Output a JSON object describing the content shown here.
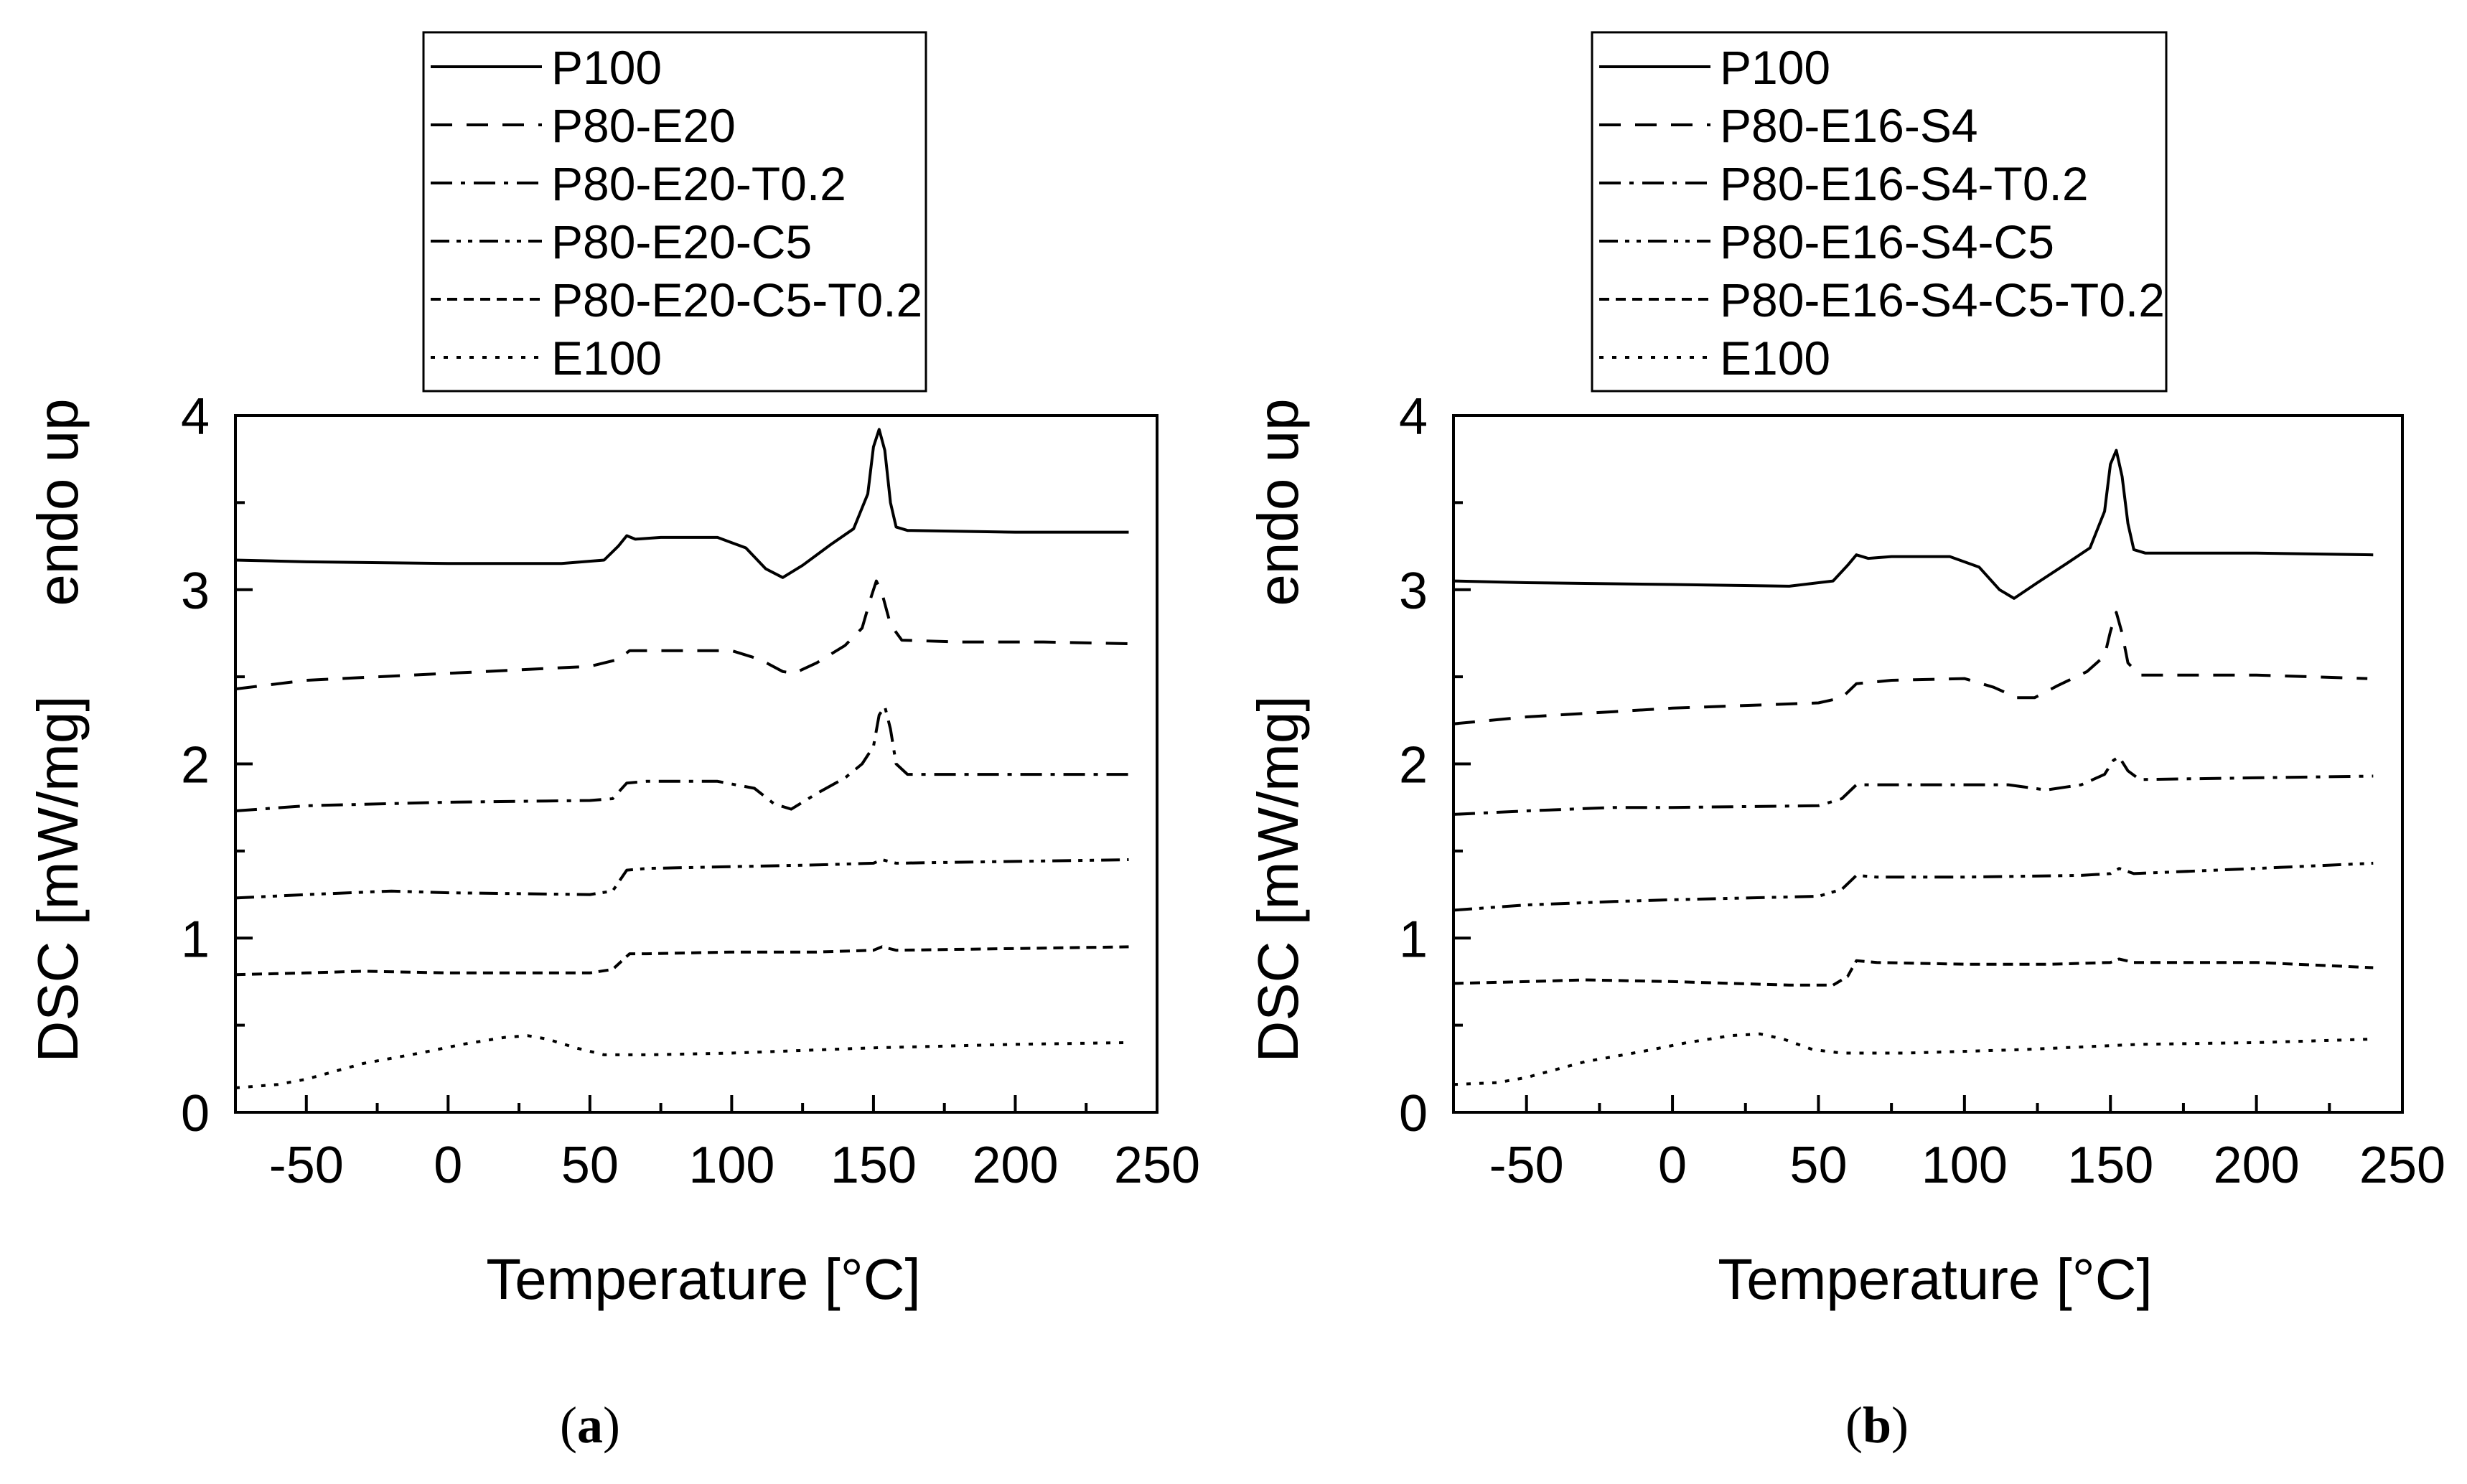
{
  "figure": {
    "panel_labels": [
      {
        "open": "(",
        "letter": "a",
        "close": ")"
      },
      {
        "open": "(",
        "letter": "b",
        "close": ")"
      }
    ]
  },
  "chart_data": [
    {
      "type": "line",
      "panel": "a",
      "xlabel": "Temperature [°C]",
      "ylabel": "DSC [mW/mg]",
      "ylabel_secondary": "endo up",
      "xlim": [
        -75,
        250
      ],
      "ylim": [
        0,
        4
      ],
      "xticks": [
        -50,
        0,
        50,
        100,
        150,
        200,
        250
      ],
      "yticks": [
        0,
        1,
        2,
        3,
        4
      ],
      "grid": false,
      "legend_position": "top",
      "series": [
        {
          "name": "P100",
          "dash": "solid",
          "points": [
            [
              -75,
              3.17
            ],
            [
              -50,
              3.16
            ],
            [
              0,
              3.15
            ],
            [
              40,
              3.15
            ],
            [
              55,
              3.17
            ],
            [
              60,
              3.25
            ],
            [
              63,
              3.31
            ],
            [
              66,
              3.29
            ],
            [
              75,
              3.3
            ],
            [
              95,
              3.3
            ],
            [
              105,
              3.24
            ],
            [
              112,
              3.12
            ],
            [
              118,
              3.07
            ],
            [
              125,
              3.14
            ],
            [
              135,
              3.26
            ],
            [
              143,
              3.35
            ],
            [
              148,
              3.55
            ],
            [
              150,
              3.82
            ],
            [
              152,
              3.92
            ],
            [
              154,
              3.8
            ],
            [
              156,
              3.5
            ],
            [
              158,
              3.36
            ],
            [
              162,
              3.34
            ],
            [
              200,
              3.33
            ],
            [
              240,
              3.33
            ]
          ]
        },
        {
          "name": "P80-E20",
          "dash": "dash",
          "points": [
            [
              -75,
              2.43
            ],
            [
              -50,
              2.48
            ],
            [
              0,
              2.52
            ],
            [
              50,
              2.56
            ],
            [
              60,
              2.6
            ],
            [
              64,
              2.65
            ],
            [
              75,
              2.65
            ],
            [
              100,
              2.65
            ],
            [
              110,
              2.6
            ],
            [
              118,
              2.53
            ],
            [
              122,
              2.52
            ],
            [
              130,
              2.58
            ],
            [
              140,
              2.68
            ],
            [
              146,
              2.78
            ],
            [
              149,
              2.95
            ],
            [
              151,
              3.05
            ],
            [
              153,
              2.98
            ],
            [
              156,
              2.8
            ],
            [
              160,
              2.71
            ],
            [
              180,
              2.7
            ],
            [
              210,
              2.7
            ],
            [
              240,
              2.69
            ]
          ]
        },
        {
          "name": "P80-E20-T0.2",
          "dash": "dashdot",
          "points": [
            [
              -75,
              1.73
            ],
            [
              -50,
              1.76
            ],
            [
              0,
              1.78
            ],
            [
              50,
              1.79
            ],
            [
              58,
              1.8
            ],
            [
              63,
              1.89
            ],
            [
              70,
              1.9
            ],
            [
              95,
              1.9
            ],
            [
              108,
              1.86
            ],
            [
              115,
              1.77
            ],
            [
              121,
              1.74
            ],
            [
              130,
              1.83
            ],
            [
              140,
              1.92
            ],
            [
              146,
              2.0
            ],
            [
              150,
              2.1
            ],
            [
              152,
              2.28
            ],
            [
              154,
              2.33
            ],
            [
              156,
              2.2
            ],
            [
              158,
              2.0
            ],
            [
              162,
              1.94
            ],
            [
              200,
              1.94
            ],
            [
              240,
              1.94
            ]
          ]
        },
        {
          "name": "P80-E20-C5",
          "dash": "dashdotdot",
          "points": [
            [
              -75,
              1.23
            ],
            [
              -50,
              1.25
            ],
            [
              -20,
              1.27
            ],
            [
              0,
              1.26
            ],
            [
              50,
              1.25
            ],
            [
              58,
              1.27
            ],
            [
              63,
              1.39
            ],
            [
              70,
              1.4
            ],
            [
              100,
              1.41
            ],
            [
              130,
              1.42
            ],
            [
              150,
              1.43
            ],
            [
              153,
              1.45
            ],
            [
              158,
              1.43
            ],
            [
              200,
              1.44
            ],
            [
              240,
              1.45
            ]
          ]
        },
        {
          "name": "P80-E20-C5-T0.2",
          "dash": "shortdash",
          "points": [
            [
              -75,
              0.79
            ],
            [
              -50,
              0.8
            ],
            [
              -30,
              0.81
            ],
            [
              0,
              0.8
            ],
            [
              50,
              0.8
            ],
            [
              58,
              0.82
            ],
            [
              64,
              0.91
            ],
            [
              70,
              0.91
            ],
            [
              100,
              0.92
            ],
            [
              130,
              0.92
            ],
            [
              150,
              0.93
            ],
            [
              153,
              0.95
            ],
            [
              158,
              0.93
            ],
            [
              200,
              0.94
            ],
            [
              240,
              0.95
            ]
          ]
        },
        {
          "name": "E100",
          "dash": "dot",
          "points": [
            [
              -75,
              0.14
            ],
            [
              -60,
              0.16
            ],
            [
              -50,
              0.19
            ],
            [
              -30,
              0.28
            ],
            [
              -10,
              0.34
            ],
            [
              5,
              0.39
            ],
            [
              20,
              0.43
            ],
            [
              28,
              0.44
            ],
            [
              35,
              0.42
            ],
            [
              45,
              0.37
            ],
            [
              55,
              0.33
            ],
            [
              70,
              0.33
            ],
            [
              100,
              0.34
            ],
            [
              150,
              0.37
            ],
            [
              200,
              0.39
            ],
            [
              240,
              0.4
            ]
          ]
        }
      ]
    },
    {
      "type": "line",
      "panel": "b",
      "xlabel": "Temperature [°C]",
      "ylabel": "DSC [mW/mg]",
      "ylabel_secondary": "endo up",
      "xlim": [
        -75,
        250
      ],
      "ylim": [
        0,
        4
      ],
      "xticks": [
        -50,
        0,
        50,
        100,
        150,
        200,
        250
      ],
      "yticks": [
        0,
        1,
        2,
        3,
        4
      ],
      "grid": false,
      "legend_position": "top",
      "series": [
        {
          "name": "P100",
          "dash": "solid",
          "points": [
            [
              -75,
              3.05
            ],
            [
              -50,
              3.04
            ],
            [
              0,
              3.03
            ],
            [
              40,
              3.02
            ],
            [
              55,
              3.05
            ],
            [
              60,
              3.14
            ],
            [
              63,
              3.2
            ],
            [
              67,
              3.18
            ],
            [
              75,
              3.19
            ],
            [
              95,
              3.19
            ],
            [
              105,
              3.13
            ],
            [
              112,
              3.0
            ],
            [
              117,
              2.95
            ],
            [
              125,
              3.04
            ],
            [
              135,
              3.15
            ],
            [
              143,
              3.24
            ],
            [
              148,
              3.45
            ],
            [
              150,
              3.72
            ],
            [
              152,
              3.8
            ],
            [
              154,
              3.65
            ],
            [
              156,
              3.38
            ],
            [
              158,
              3.23
            ],
            [
              162,
              3.21
            ],
            [
              200,
              3.21
            ],
            [
              240,
              3.2
            ]
          ]
        },
        {
          "name": "P80-E16-S4",
          "dash": "dash",
          "points": [
            [
              -75,
              2.23
            ],
            [
              -50,
              2.27
            ],
            [
              -20,
              2.3
            ],
            [
              0,
              2.32
            ],
            [
              50,
              2.35
            ],
            [
              58,
              2.38
            ],
            [
              63,
              2.46
            ],
            [
              75,
              2.48
            ],
            [
              100,
              2.49
            ],
            [
              110,
              2.44
            ],
            [
              118,
              2.38
            ],
            [
              124,
              2.38
            ],
            [
              132,
              2.45
            ],
            [
              142,
              2.53
            ],
            [
              148,
              2.62
            ],
            [
              150,
              2.76
            ],
            [
              152,
              2.87
            ],
            [
              154,
              2.75
            ],
            [
              156,
              2.58
            ],
            [
              160,
              2.51
            ],
            [
              200,
              2.51
            ],
            [
              238,
              2.49
            ]
          ]
        },
        {
          "name": "P80-E16-S4-T0.2",
          "dash": "dashdot",
          "points": [
            [
              -75,
              1.71
            ],
            [
              -50,
              1.73
            ],
            [
              -20,
              1.75
            ],
            [
              0,
              1.75
            ],
            [
              50,
              1.76
            ],
            [
              58,
              1.8
            ],
            [
              63,
              1.88
            ],
            [
              70,
              1.88
            ],
            [
              100,
              1.88
            ],
            [
              115,
              1.88
            ],
            [
              128,
              1.85
            ],
            [
              140,
              1.88
            ],
            [
              148,
              1.94
            ],
            [
              151,
              2.02
            ],
            [
              153,
              2.04
            ],
            [
              156,
              1.96
            ],
            [
              160,
              1.91
            ],
            [
              200,
              1.92
            ],
            [
              240,
              1.93
            ]
          ]
        },
        {
          "name": "P80-E16-S4-C5",
          "dash": "dashdotdot",
          "points": [
            [
              -75,
              1.16
            ],
            [
              -50,
              1.19
            ],
            [
              -20,
              1.21
            ],
            [
              0,
              1.22
            ],
            [
              50,
              1.24
            ],
            [
              58,
              1.28
            ],
            [
              63,
              1.36
            ],
            [
              70,
              1.35
            ],
            [
              100,
              1.35
            ],
            [
              140,
              1.36
            ],
            [
              150,
              1.37
            ],
            [
              153,
              1.4
            ],
            [
              158,
              1.37
            ],
            [
              200,
              1.4
            ],
            [
              240,
              1.43
            ]
          ]
        },
        {
          "name": "P80-E16-S4-C5-T0.2",
          "dash": "shortdash",
          "points": [
            [
              -75,
              0.74
            ],
            [
              -50,
              0.75
            ],
            [
              -30,
              0.76
            ],
            [
              0,
              0.75
            ],
            [
              40,
              0.73
            ],
            [
              55,
              0.73
            ],
            [
              60,
              0.78
            ],
            [
              63,
              0.87
            ],
            [
              70,
              0.86
            ],
            [
              100,
              0.85
            ],
            [
              130,
              0.85
            ],
            [
              150,
              0.86
            ],
            [
              153,
              0.88
            ],
            [
              158,
              0.86
            ],
            [
              200,
              0.86
            ],
            [
              240,
              0.83
            ]
          ]
        },
        {
          "name": "E100",
          "dash": "dot",
          "points": [
            [
              -75,
              0.16
            ],
            [
              -60,
              0.17
            ],
            [
              -50,
              0.2
            ],
            [
              -30,
              0.29
            ],
            [
              -10,
              0.35
            ],
            [
              5,
              0.4
            ],
            [
              20,
              0.44
            ],
            [
              30,
              0.45
            ],
            [
              38,
              0.42
            ],
            [
              48,
              0.36
            ],
            [
              58,
              0.34
            ],
            [
              80,
              0.34
            ],
            [
              120,
              0.36
            ],
            [
              160,
              0.39
            ],
            [
              200,
              0.4
            ],
            [
              240,
              0.42
            ]
          ]
        }
      ]
    }
  ]
}
